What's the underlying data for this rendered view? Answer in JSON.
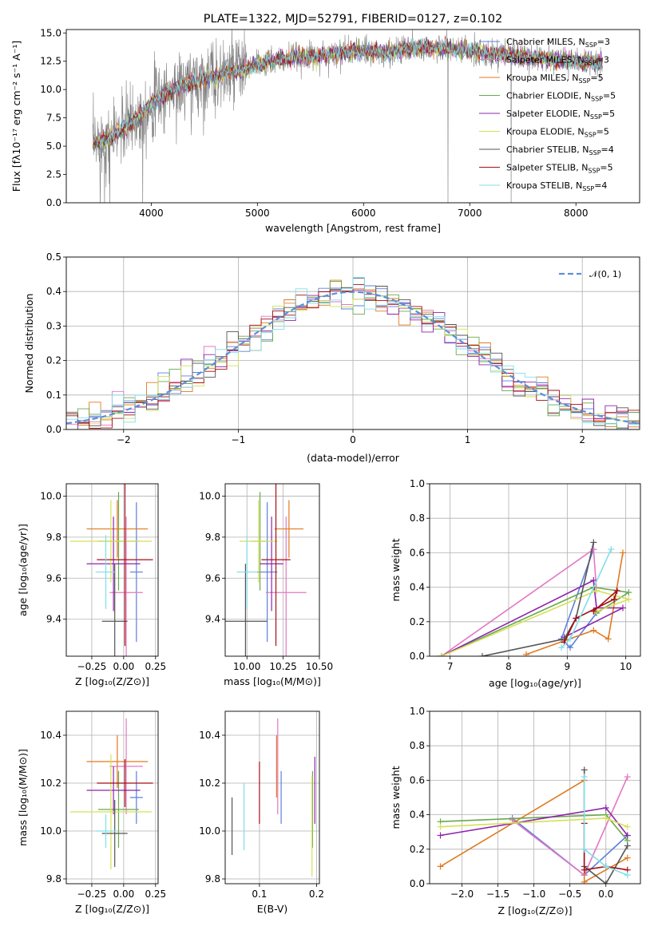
{
  "figure_title": "PLATE=1322, MJD=52791, FIBERID=0127, z=0.102",
  "colors": {
    "Chabrier MILES": "#5b7fdc",
    "Salpeter MILES": "#e377c2",
    "Kroupa MILES": "#e07a1f",
    "Chabrier ELODIE": "#6aa84f",
    "Salpeter ELODIE": "#8e24aa",
    "Kroupa ELODIE": "#d4e157",
    "Chabrier STELIB": "#555555",
    "Salpeter STELIB": "#a50f15",
    "Kroupa STELIB": "#80deea",
    "data": "#808080",
    "gauss": "#5b8fd6"
  },
  "chart_data": [
    {
      "id": "spectrum",
      "type": "line",
      "xlabel": "wavelength [Angstrom, rest frame]",
      "ylabel": "Flux [fλ10⁻¹⁷ erg cm⁻² s⁻¹ A⁻¹]",
      "xlim": [
        3200,
        8600
      ],
      "ylim": [
        0,
        15.3
      ],
      "xticks": [
        4000,
        5000,
        6000,
        7000,
        8000
      ],
      "yticks": [
        0.0,
        2.5,
        5.0,
        7.5,
        10.0,
        12.5,
        15.0
      ],
      "legend_position": "right",
      "continuum": {
        "x": [
          3450,
          3600,
          3700,
          3800,
          3900,
          4000,
          4100,
          4200,
          4400,
          4600,
          4800,
          5000,
          5200,
          5400,
          5600,
          5800,
          6000,
          6200,
          6400,
          6600,
          6800,
          7000,
          7200,
          7400,
          7600,
          7800,
          8000,
          8200,
          8250
        ],
        "y": [
          5.2,
          5.7,
          6.3,
          7.1,
          7.7,
          8.8,
          9.4,
          10.0,
          10.6,
          11.2,
          11.6,
          12.2,
          12.6,
          12.9,
          13.0,
          13.3,
          13.4,
          13.2,
          13.6,
          13.7,
          13.6,
          13.4,
          13.1,
          13.0,
          12.8,
          12.6,
          12.5,
          12.3,
          12.4
        ]
      },
      "series": [
        {
          "name": "Chabrier MILES, N",
          "nssp": "=3"
        },
        {
          "name": "Salpeter MILES, N",
          "nssp": "=3"
        },
        {
          "name": "Kroupa MILES, N",
          "nssp": "=5"
        },
        {
          "name": "Chabrier ELODIE, N",
          "nssp": "=5"
        },
        {
          "name": "Salpeter ELODIE, N",
          "nssp": "=5"
        },
        {
          "name": "Kroupa ELODIE, N",
          "nssp": "=5"
        },
        {
          "name": "Chabrier STELIB, N",
          "nssp": "=4"
        },
        {
          "name": "Salpeter STELIB, N",
          "nssp": "=5"
        },
        {
          "name": "Kroupa STELIB, N",
          "nssp": "=4"
        }
      ],
      "nssp_subscript": "SSP"
    },
    {
      "id": "residuals",
      "type": "area",
      "xlabel": "(data-model)/error",
      "ylabel": "Normed distribution",
      "xlim": [
        -2.5,
        2.5
      ],
      "ylim": [
        0,
        0.5
      ],
      "xticks": [
        -2,
        -1,
        0,
        1,
        2
      ],
      "yticks": [
        0.0,
        0.1,
        0.2,
        0.3,
        0.4,
        0.5
      ],
      "grid": true,
      "legend": "𝒩(0, 1)",
      "legend_position": "top-right",
      "bin_width": 0.1
    },
    {
      "id": "age_vs_Z",
      "type": "scatter",
      "xlabel": "Z [log₁₀(Z/Z⊙)]",
      "ylabel": "age  [log₁₀(age/yr)]",
      "xlim": [
        -0.45,
        0.27
      ],
      "ylim": [
        9.22,
        10.06
      ],
      "xticks": [
        -0.25,
        0.0,
        0.25
      ],
      "xticklabels": [
        "−0.25",
        "0.00",
        "0.25"
      ],
      "yticks": [
        9.4,
        9.6,
        9.8,
        10.0
      ],
      "grid": true,
      "points": [
        {
          "series": "Chabrier MILES",
          "x": 0.1,
          "xerr": 0.05,
          "y": 9.63,
          "yerr": 0.34
        },
        {
          "series": "Salpeter MILES",
          "x": 0.02,
          "xerr": 0.13,
          "y": 9.53,
          "yerr": 0.37
        },
        {
          "series": "Kroupa MILES",
          "x": -0.05,
          "xerr": 0.24,
          "y": 9.84,
          "yerr": 0.14
        },
        {
          "series": "Chabrier ELODIE",
          "x": -0.04,
          "xerr": 0.16,
          "y": 9.78,
          "yerr": 0.24
        },
        {
          "series": "Salpeter ELODIE",
          "x": -0.08,
          "xerr": 0.21,
          "y": 9.67,
          "yerr": 0.23
        },
        {
          "series": "Kroupa ELODIE",
          "x": -0.1,
          "xerr": 0.32,
          "y": 9.78,
          "yerr": 0.2
        },
        {
          "series": "Chabrier STELIB",
          "x": -0.07,
          "xerr": 0.1,
          "y": 9.39,
          "yerr": 0.28
        },
        {
          "series": "Salpeter STELIB",
          "x": 0.01,
          "xerr": 0.22,
          "y": 9.69,
          "yerr": 0.42
        },
        {
          "series": "Kroupa STELIB",
          "x": -0.14,
          "xerr": 0.08,
          "y": 9.63,
          "yerr": 0.18
        }
      ]
    },
    {
      "id": "age_vs_mass",
      "type": "scatter",
      "xlabel": "mass [log₁₀(M/M⊙)]",
      "ylabel": "",
      "xlim": [
        9.85,
        10.5
      ],
      "ylim": [
        9.22,
        10.06
      ],
      "xticks": [
        10.0,
        10.25,
        10.5
      ],
      "xticklabels": [
        "10.00",
        "10.25",
        "10.50"
      ],
      "yticks": [
        9.4,
        9.6,
        9.8,
        10.0
      ],
      "grid": true,
      "points": [
        {
          "series": "Chabrier MILES",
          "x": 10.14,
          "xerr": 0.07,
          "y": 9.63,
          "yerr": 0.34
        },
        {
          "series": "Salpeter MILES",
          "x": 10.27,
          "xerr": 0.14,
          "y": 9.53,
          "yerr": 0.37
        },
        {
          "series": "Kroupa MILES",
          "x": 10.29,
          "xerr": 0.1,
          "y": 9.84,
          "yerr": 0.14
        },
        {
          "series": "Chabrier ELODIE",
          "x": 10.09,
          "xerr": 0.06,
          "y": 9.78,
          "yerr": 0.24
        },
        {
          "series": "Salpeter ELODIE",
          "x": 10.17,
          "xerr": 0.08,
          "y": 9.67,
          "yerr": 0.23
        },
        {
          "series": "Kroupa ELODIE",
          "x": 10.08,
          "xerr": 0.13,
          "y": 9.78,
          "yerr": 0.2
        },
        {
          "series": "Chabrier STELIB",
          "x": 9.99,
          "xerr": 0.15,
          "y": 9.39,
          "yerr": 0.28
        },
        {
          "series": "Salpeter STELIB",
          "x": 10.2,
          "xerr": 0.1,
          "y": 9.69,
          "yerr": 0.42
        },
        {
          "series": "Kroupa STELIB",
          "x": 10.0,
          "xerr": 0.07,
          "y": 9.63,
          "yerr": 0.18
        }
      ]
    },
    {
      "id": "weight_vs_age",
      "type": "line",
      "xlabel": "age  [log₁₀(age/yr)]",
      "ylabel": "mass weight",
      "xlim": [
        6.65,
        10.25
      ],
      "ylim": [
        0,
        1.0
      ],
      "xticks": [
        7,
        8,
        9,
        10
      ],
      "yticks": [
        0.0,
        0.2,
        0.4,
        0.6,
        0.8,
        1.0
      ],
      "grid": true,
      "series": [
        {
          "name": "Chabrier MILES",
          "x": [
            9.45,
            8.9,
            9.05,
            9.5
          ],
          "y": [
            0.62,
            0.1,
            0.05,
            0.25
          ]
        },
        {
          "name": "Salpeter MILES",
          "x": [
            6.85,
            9.45,
            9.5
          ],
          "y": [
            0.0,
            0.62,
            0.38
          ]
        },
        {
          "name": "Kroupa MILES",
          "x": [
            8.3,
            9.45,
            9.7,
            9.95
          ],
          "y": [
            0.01,
            0.15,
            0.1,
            0.6
          ]
        },
        {
          "name": "Chabrier ELODIE",
          "x": [
            6.85,
            9.45,
            10.05,
            9.5
          ],
          "y": [
            0.0,
            0.4,
            0.37,
            0.25
          ]
        },
        {
          "name": "Salpeter ELODIE",
          "x": [
            6.85,
            9.45,
            9.5,
            9.95,
            8.95
          ],
          "y": [
            0.0,
            0.44,
            0.28,
            0.28,
            0.11
          ]
        },
        {
          "name": "Kroupa ELODIE",
          "x": [
            6.85,
            9.5,
            10.05,
            9.5
          ],
          "y": [
            0.0,
            0.38,
            0.33,
            0.26
          ]
        },
        {
          "name": "Chabrier STELIB",
          "x": [
            7.55,
            8.95,
            9.15,
            9.45
          ],
          "y": [
            0.0,
            0.1,
            0.22,
            0.66
          ]
        },
        {
          "name": "Salpeter STELIB",
          "x": [
            8.95,
            9.15,
            9.8,
            9.85,
            9.45
          ],
          "y": [
            0.08,
            0.22,
            0.33,
            0.38,
            0.26
          ]
        },
        {
          "name": "Kroupa STELIB",
          "x": [
            8.9,
            9.05,
            9.75
          ],
          "y": [
            0.05,
            0.1,
            0.62
          ]
        }
      ]
    },
    {
      "id": "mass_vs_Z",
      "type": "scatter",
      "xlabel": "Z [log₁₀(Z/Z⊙)]",
      "ylabel": "mass [log₁₀(M/M⊙)]",
      "xlim": [
        -0.45,
        0.27
      ],
      "ylim": [
        9.78,
        10.5
      ],
      "xticks": [
        -0.25,
        0.0,
        0.25
      ],
      "xticklabels": [
        "−0.25",
        "0.00",
        "0.25"
      ],
      "yticks": [
        9.8,
        10.0,
        10.2,
        10.4
      ],
      "grid": true,
      "points": [
        {
          "series": "Chabrier MILES",
          "x": 0.1,
          "xerr": 0.05,
          "y": 10.14,
          "yerr": 0.11
        },
        {
          "series": "Salpeter MILES",
          "x": 0.02,
          "xerr": 0.13,
          "y": 10.27,
          "yerr": 0.2
        },
        {
          "series": "Kroupa MILES",
          "x": -0.05,
          "xerr": 0.24,
          "y": 10.29,
          "yerr": 0.11
        },
        {
          "series": "Chabrier ELODIE",
          "x": -0.04,
          "xerr": 0.16,
          "y": 10.09,
          "yerr": 0.16
        },
        {
          "series": "Salpeter ELODIE",
          "x": -0.08,
          "xerr": 0.21,
          "y": 10.17,
          "yerr": 0.1
        },
        {
          "series": "Kroupa ELODIE",
          "x": -0.1,
          "xerr": 0.32,
          "y": 10.08,
          "yerr": 0.24
        },
        {
          "series": "Chabrier STELIB",
          "x": -0.07,
          "xerr": 0.1,
          "y": 9.99,
          "yerr": 0.14
        },
        {
          "series": "Salpeter STELIB",
          "x": 0.01,
          "xerr": 0.22,
          "y": 10.2,
          "yerr": 0.1
        },
        {
          "series": "Kroupa STELIB",
          "x": -0.14,
          "xerr": 0.08,
          "y": 10.0,
          "yerr": 0.07
        }
      ]
    },
    {
      "id": "mass_vs_ebv",
      "type": "scatter",
      "xlabel": "E(B-V)",
      "ylabel": "",
      "xlim": [
        0.04,
        0.205
      ],
      "ylim": [
        9.78,
        10.5
      ],
      "xticks": [
        0.1,
        0.2
      ],
      "xticklabels": [
        "0.1",
        "0.2"
      ],
      "yticks": [
        9.8,
        10.0,
        10.2,
        10.4
      ],
      "grid": true,
      "points": [
        {
          "series": "Chabrier MILES",
          "x": 0.138,
          "y": 10.14,
          "yerr": 0.11
        },
        {
          "series": "Salpeter MILES",
          "x": 0.132,
          "y": 10.27,
          "yerr": 0.2
        },
        {
          "series": "Kroupa MILES",
          "x": 0.13,
          "y": 10.27,
          "yerr": 0.13
        },
        {
          "series": "Chabrier ELODIE",
          "x": 0.193,
          "y": 10.09,
          "yerr": 0.16
        },
        {
          "series": "Salpeter ELODIE",
          "x": 0.197,
          "y": 10.17,
          "yerr": 0.14
        },
        {
          "series": "Kroupa ELODIE",
          "x": 0.192,
          "y": 10.02,
          "yerr": 0.21
        },
        {
          "series": "Chabrier STELIB",
          "x": 0.052,
          "y": 10.02,
          "yerr": 0.12
        },
        {
          "series": "Salpeter STELIB",
          "x": 0.1,
          "y": 10.16,
          "yerr": 0.13
        },
        {
          "series": "Kroupa STELIB",
          "x": 0.073,
          "y": 10.06,
          "yerr": 0.14
        }
      ]
    },
    {
      "id": "weight_vs_Z",
      "type": "line",
      "xlabel": "Z [log₁₀(Z/Z⊙)]",
      "ylabel": "mass weight",
      "xlim": [
        -2.45,
        0.48
      ],
      "ylim": [
        0,
        1.0
      ],
      "xticks": [
        -2.0,
        -1.5,
        -1.0,
        -0.5,
        0.0
      ],
      "xticklabels": [
        "−2.0",
        "−1.5",
        "−1.0",
        "−0.5",
        "0.0"
      ],
      "yticks": [
        0.0,
        0.2,
        0.4,
        0.6,
        0.8,
        1.0
      ],
      "grid": true,
      "series": [
        {
          "name": "Chabrier MILES",
          "x": [
            -1.3,
            -0.3,
            0.3
          ],
          "y": [
            0.38,
            0.05,
            0.28
          ]
        },
        {
          "name": "Salpeter MILES",
          "x": [
            -1.3,
            -0.3,
            0.3
          ],
          "y": [
            0.37,
            0.05,
            0.62
          ]
        },
        {
          "name": "Kroupa MILES",
          "x": [
            -2.3,
            -0.3,
            -0.3,
            0.3
          ],
          "y": [
            0.1,
            0.6,
            0.01,
            0.15
          ]
        },
        {
          "name": "Chabrier ELODIE",
          "x": [
            -2.3,
            0.0,
            0.3
          ],
          "y": [
            0.36,
            0.4,
            0.25
          ]
        },
        {
          "name": "Salpeter ELODIE",
          "x": [
            -2.3,
            0.0,
            0.3
          ],
          "y": [
            0.28,
            0.44,
            0.28
          ]
        },
        {
          "name": "Kroupa ELODIE",
          "x": [
            -2.3,
            0.0,
            0.3
          ],
          "y": [
            0.33,
            0.38,
            0.33
          ]
        },
        {
          "name": "Chabrier STELIB",
          "x": [
            -0.3,
            -0.3,
            0.0,
            0.3
          ],
          "y": [
            0.66,
            0.1,
            0.0,
            0.22
          ]
        },
        {
          "name": "Salpeter STELIB",
          "x": [
            -0.3,
            -0.3,
            0.0,
            0.3
          ],
          "y": [
            0.35,
            0.08,
            0.1,
            0.08
          ]
        },
        {
          "name": "Kroupa STELIB",
          "x": [
            -0.3,
            -0.3,
            0.0,
            0.3
          ],
          "y": [
            0.62,
            0.2,
            0.1,
            0.05
          ]
        }
      ]
    }
  ]
}
